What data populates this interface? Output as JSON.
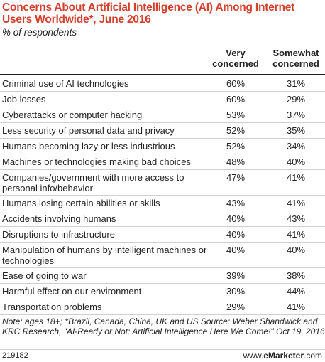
{
  "chart_data": {
    "type": "table",
    "title": "Concerns About Artificial Intelligence (AI) Among Internet Users Worldwide*, June 2016",
    "subtitle": "% of respondents",
    "columns": [
      "Very concerned",
      "Somewhat concerned"
    ],
    "rows": [
      {
        "label": "Criminal use of AI technologies",
        "very": "60%",
        "somewhat": "31%"
      },
      {
        "label": "Job losses",
        "very": "60%",
        "somewhat": "29%"
      },
      {
        "label": "Cyberattacks or computer hacking",
        "very": "53%",
        "somewhat": "37%"
      },
      {
        "label": "Less security of personal data and privacy",
        "very": "52%",
        "somewhat": "35%"
      },
      {
        "label": "Humans becoming lazy or less industrious",
        "very": "52%",
        "somewhat": "34%"
      },
      {
        "label": "Machines or technologies making bad choices",
        "very": "48%",
        "somewhat": "40%"
      },
      {
        "label": "Companies/government with more access to personal info/behavior",
        "very": "47%",
        "somewhat": "41%"
      },
      {
        "label": "Humans losing certain abilities or skills",
        "very": "43%",
        "somewhat": "41%"
      },
      {
        "label": "Accidents involving humans",
        "very": "40%",
        "somewhat": "43%"
      },
      {
        "label": "Disruptions to infrastructure",
        "very": "40%",
        "somewhat": "41%"
      },
      {
        "label": "Manipulation of humans by intelligent machines or technologies",
        "very": "40%",
        "somewhat": "40%"
      },
      {
        "label": "Ease of going to war",
        "very": "39%",
        "somewhat": "38%"
      },
      {
        "label": "Harmful effect on our environment",
        "very": "30%",
        "somewhat": "44%"
      },
      {
        "label": "Transportation problems",
        "very": "29%",
        "somewhat": "41%"
      }
    ]
  },
  "notes": "Note: ages 18+; *Brazil, Canada, China, UK and US Source: Weber Shandwick and KRC Research, \"AI-Ready or Not: Artificial Intelligence Here We Come!\" Oct 19, 2016",
  "footer": {
    "chart_id": "219182",
    "brand_prefix": "www.",
    "brand_name": "eMarketer",
    "brand_suffix": ".com"
  }
}
